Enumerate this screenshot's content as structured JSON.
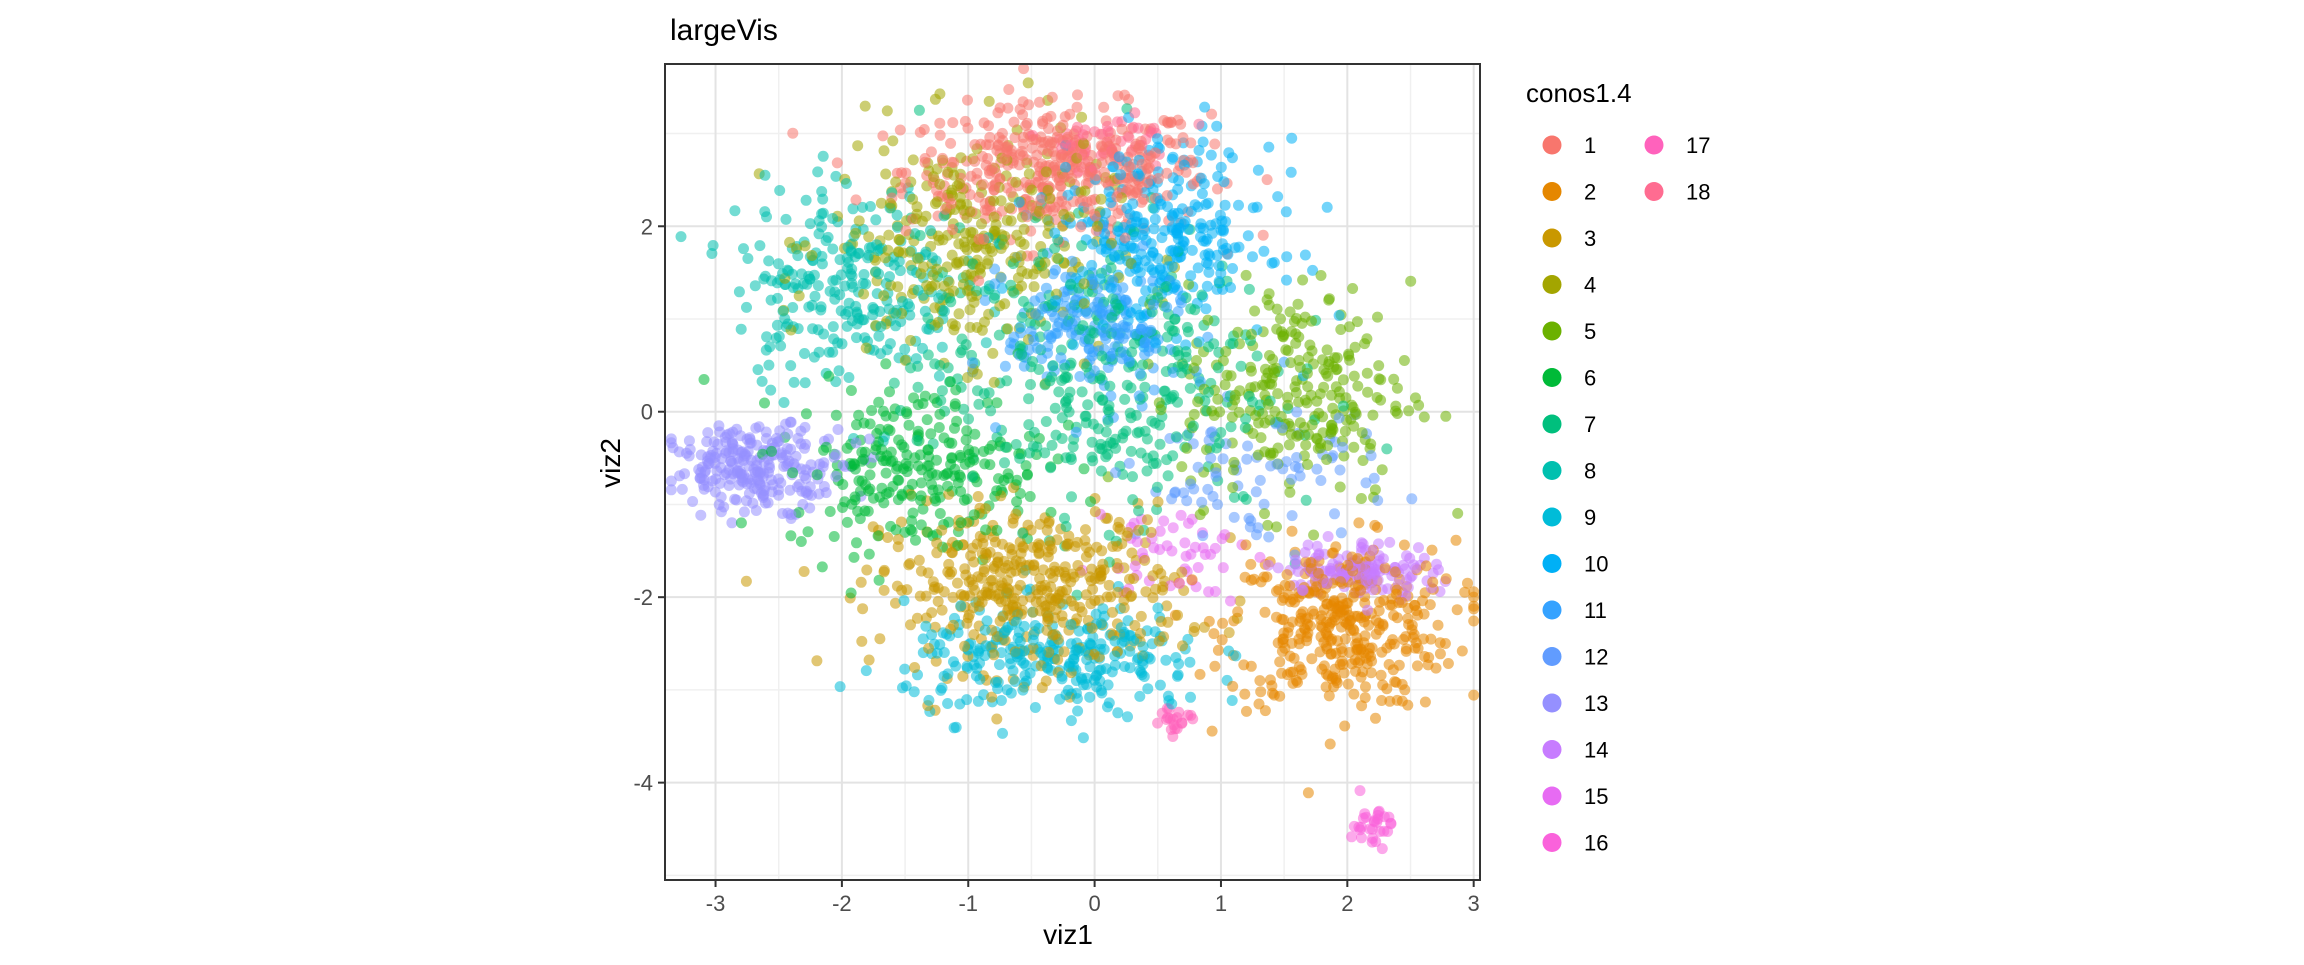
{
  "chart_data": {
    "type": "scatter",
    "title": "largeVis",
    "xlabel": "viz1",
    "ylabel": "viz2",
    "xlim": [
      -3.4,
      3.05
    ],
    "ylim": [
      -5.05,
      3.75
    ],
    "xticks": [
      -3,
      -2,
      -1,
      0,
      1,
      2,
      3
    ],
    "yticks": [
      -4,
      -2,
      0,
      2
    ],
    "xtick_labels": [
      "-3",
      "-2",
      "-1",
      "0",
      "1",
      "2",
      "3"
    ],
    "ytick_labels": [
      "-4",
      "-2",
      "0",
      "2"
    ],
    "grid": true,
    "point_alpha": 0.55,
    "legend": {
      "title": "conos1.4",
      "placement": "right",
      "columns": 2
    },
    "series": [
      {
        "name": "1",
        "color": "#F8766D",
        "cx": -0.3,
        "cy": 2.6,
        "sx": 0.6,
        "sy": 0.35,
        "n": 420
      },
      {
        "name": "2",
        "color": "#E58700",
        "cx": 1.95,
        "cy": -2.3,
        "sx": 0.45,
        "sy": 0.45,
        "n": 380
      },
      {
        "name": "3",
        "color": "#C99800",
        "cx": -0.5,
        "cy": -1.9,
        "sx": 0.6,
        "sy": 0.45,
        "n": 420
      },
      {
        "name": "4",
        "color": "#A3A500",
        "cx": -1.0,
        "cy": 1.8,
        "sx": 0.55,
        "sy": 0.6,
        "n": 320
      },
      {
        "name": "5",
        "color": "#6BB100",
        "cx": 1.6,
        "cy": 0.2,
        "sx": 0.45,
        "sy": 0.6,
        "n": 260
      },
      {
        "name": "6",
        "color": "#00BA38",
        "cx": -1.4,
        "cy": -0.6,
        "sx": 0.5,
        "sy": 0.45,
        "n": 260
      },
      {
        "name": "7",
        "color": "#00BF7D",
        "cx": 0.0,
        "cy": 0.4,
        "sx": 0.7,
        "sy": 0.8,
        "n": 380
      },
      {
        "name": "8",
        "color": "#00C0AF",
        "cx": -1.95,
        "cy": 1.4,
        "sx": 0.45,
        "sy": 0.55,
        "n": 260
      },
      {
        "name": "9",
        "color": "#00BCD8",
        "cx": -0.3,
        "cy": -2.7,
        "sx": 0.6,
        "sy": 0.3,
        "n": 280
      },
      {
        "name": "10",
        "color": "#00B0F6",
        "cx": 0.5,
        "cy": 1.9,
        "sx": 0.45,
        "sy": 0.5,
        "n": 300
      },
      {
        "name": "11",
        "color": "#35A2FF",
        "cx": 0.0,
        "cy": 0.9,
        "sx": 0.35,
        "sy": 0.4,
        "n": 200
      },
      {
        "name": "12",
        "color": "#619CFF",
        "cx": 1.3,
        "cy": -0.7,
        "sx": 0.5,
        "sy": 0.35,
        "n": 80
      },
      {
        "name": "13",
        "color": "#9590FF",
        "cx": -2.65,
        "cy": -0.6,
        "sx": 0.35,
        "sy": 0.22,
        "n": 240
      },
      {
        "name": "14",
        "color": "#C77CFF",
        "cx": 2.1,
        "cy": -1.7,
        "sx": 0.3,
        "sy": 0.15,
        "n": 140
      },
      {
        "name": "15",
        "color": "#E76BF3",
        "cx": 0.6,
        "cy": -1.5,
        "sx": 0.3,
        "sy": 0.25,
        "n": 50
      },
      {
        "name": "16",
        "color": "#FA62DB",
        "cx": 2.2,
        "cy": -4.45,
        "sx": 0.08,
        "sy": 0.12,
        "n": 30
      },
      {
        "name": "17",
        "color": "#FF62BC",
        "cx": 0.6,
        "cy": -3.35,
        "sx": 0.08,
        "sy": 0.1,
        "n": 20
      },
      {
        "name": "18",
        "color": "#FF6C91",
        "cx": 0.1,
        "cy": 2.9,
        "sx": 0.3,
        "sy": 0.15,
        "n": 50
      }
    ]
  }
}
